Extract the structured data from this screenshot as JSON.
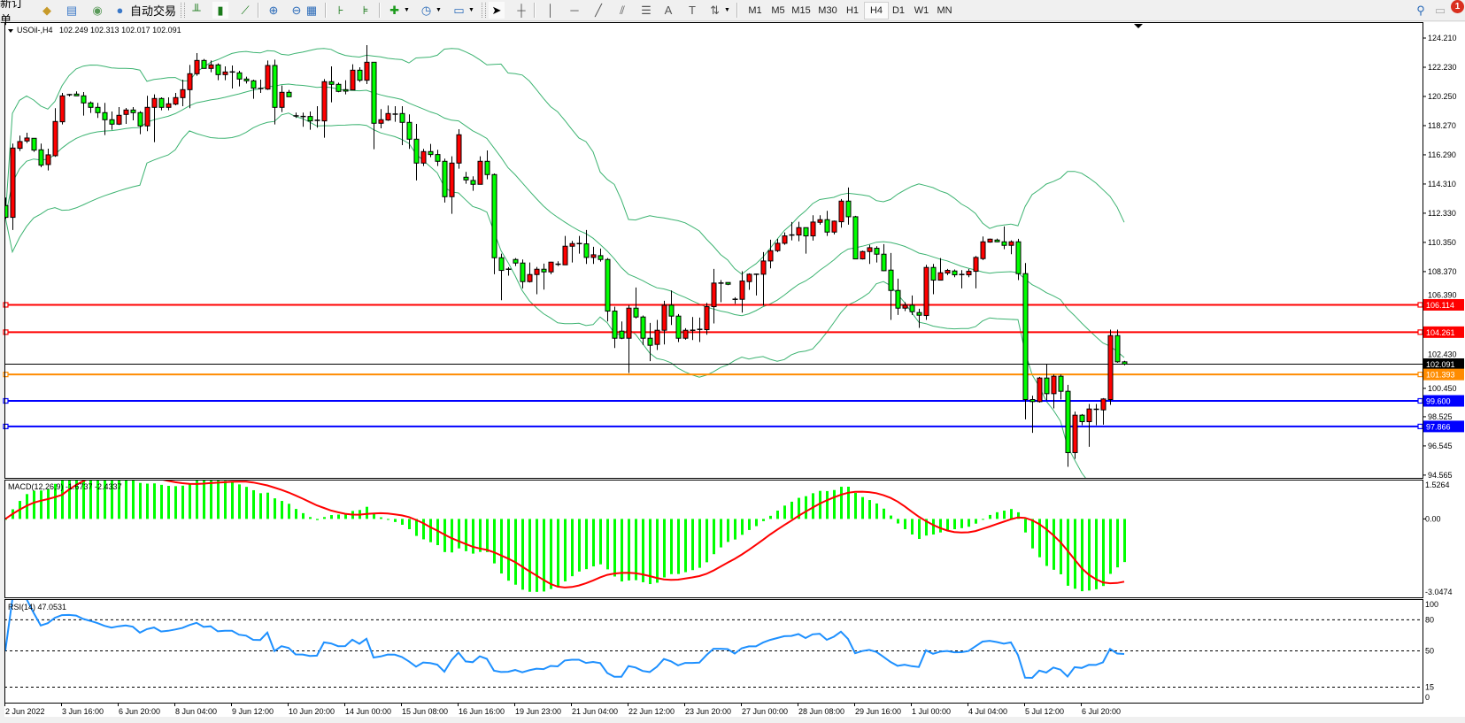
{
  "toolbar": {
    "new_order": "新订单",
    "auto_trading": "自动交易",
    "icons": [
      "book-icon",
      "terminal-icon",
      "signal-icon",
      "auto-trading-icon",
      "bar-chart-icon",
      "candlestick-icon",
      "line-chart-icon",
      "zoom-in-icon",
      "zoom-out-icon",
      "tile-windows-icon",
      "auto-scroll-icon",
      "chart-shift-icon",
      "new-chart-icon",
      "clock-icon",
      "template-icon",
      "cursor-icon",
      "crosshair-icon",
      "vertical-line-icon",
      "horizontal-line-icon",
      "trendline-icon",
      "equidistant-channel-icon",
      "fibonacci-icon",
      "text-icon",
      "text-label-icon",
      "arrows-icon",
      "search-icon",
      "chat-icon"
    ],
    "periods": [
      "M1",
      "M5",
      "M15",
      "M30",
      "H1",
      "H4",
      "D1",
      "W1",
      "MN"
    ],
    "active_period": "H4",
    "notification_count": "1"
  },
  "chart_header": {
    "symbol": "USOil-,H4",
    "ohlc": "102.249 102.313 102.017 102.091"
  },
  "chart_data": {
    "type": "candlestick",
    "colors": {
      "bull": "#ff0000",
      "bear": "#00ff00",
      "bands": "#3cb371",
      "macd_hist": "#00ff00",
      "macd_signal": "#ff0000",
      "rsi": "#1e90ff"
    },
    "ohlc": [
      [
        112.85,
        113.39,
        111.95,
        112.05
      ],
      [
        112.05,
        117.05,
        111.19,
        116.75
      ],
      [
        116.73,
        117.59,
        116.55,
        117.19
      ],
      [
        117.23,
        117.79,
        117.09,
        117.43
      ],
      [
        117.41,
        117.41,
        116.49,
        116.61
      ],
      [
        116.63,
        117.05,
        115.45,
        115.59
      ],
      [
        115.63,
        116.71,
        115.23,
        116.29
      ],
      [
        116.23,
        119.45,
        116.15,
        118.55
      ],
      [
        118.53,
        120.49,
        118.35,
        120.29
      ],
      [
        120.29,
        120.41,
        120.25,
        120.37
      ],
      [
        120.41,
        120.59,
        120.29,
        120.29
      ],
      [
        120.29,
        120.55,
        118.95,
        119.81
      ],
      [
        119.81,
        119.91,
        119.13,
        119.51
      ],
      [
        119.51,
        119.81,
        118.79,
        119.15
      ],
      [
        119.15,
        119.81,
        117.63,
        118.67
      ],
      [
        118.67,
        119.23,
        117.99,
        118.37
      ],
      [
        118.37,
        119.53,
        118.31,
        118.97
      ],
      [
        119.03,
        119.47,
        118.39,
        119.33
      ],
      [
        119.33,
        119.53,
        118.63,
        119.15
      ],
      [
        119.15,
        119.25,
        117.69,
        118.25
      ],
      [
        118.25,
        120.29,
        117.89,
        119.51
      ],
      [
        119.51,
        120.39,
        117.15,
        120.11
      ],
      [
        120.11,
        120.19,
        119.31,
        119.51
      ],
      [
        119.51,
        120.19,
        119.31,
        119.75
      ],
      [
        119.73,
        120.49,
        119.65,
        120.17
      ],
      [
        120.17,
        121.39,
        119.59,
        120.71
      ],
      [
        120.71,
        122.39,
        119.45,
        121.79
      ],
      [
        121.79,
        123.19,
        121.65,
        122.69
      ],
      [
        122.69,
        122.79,
        122.13,
        122.15
      ],
      [
        122.15,
        122.69,
        121.89,
        122.39
      ],
      [
        122.39,
        122.49,
        121.35,
        121.73
      ],
      [
        121.73,
        122.29,
        121.35,
        121.91
      ],
      [
        121.85,
        122.35,
        120.79,
        121.91
      ],
      [
        121.85,
        121.99,
        120.93,
        121.43
      ],
      [
        121.43,
        121.59,
        121.13,
        121.31
      ],
      [
        121.31,
        121.39,
        120.09,
        120.81
      ],
      [
        120.79,
        121.39,
        120.49,
        120.79
      ],
      [
        120.75,
        122.69,
        120.69,
        122.35
      ],
      [
        122.35,
        122.75,
        118.35,
        119.51
      ],
      [
        119.51,
        120.99,
        119.19,
        120.53
      ],
      [
        120.53,
        120.69,
        120.23,
        120.23
      ],
      [
        118.93,
        119.15,
        118.79,
        118.89
      ],
      [
        118.89,
        119.15,
        118.19,
        118.87
      ],
      [
        118.89,
        119.23,
        117.99,
        118.59
      ],
      [
        118.63,
        119.59,
        118.13,
        118.63
      ],
      [
        118.59,
        121.43,
        117.45,
        121.25
      ],
      [
        121.25,
        122.29,
        119.85,
        121.07
      ],
      [
        121.07,
        121.19,
        120.53,
        120.59
      ],
      [
        120.71,
        121.35,
        120.39,
        120.61
      ],
      [
        120.69,
        122.43,
        120.69,
        122.03
      ],
      [
        122.03,
        122.23,
        121.23,
        121.35
      ],
      [
        121.35,
        123.73,
        121.09,
        122.57
      ],
      [
        122.57,
        122.57,
        116.67,
        118.43
      ],
      [
        118.43,
        119.39,
        118.09,
        118.67
      ],
      [
        118.65,
        119.63,
        118.59,
        119.09
      ],
      [
        119.05,
        119.59,
        118.53,
        119.05
      ],
      [
        119.09,
        119.59,
        116.95,
        118.49
      ],
      [
        118.49,
        119.03,
        116.69,
        117.35
      ],
      [
        117.35,
        118.39,
        114.55,
        115.73
      ],
      [
        115.73,
        116.69,
        115.53,
        116.51
      ],
      [
        116.51,
        117.03,
        116.13,
        116.31
      ],
      [
        116.31,
        116.63,
        115.53,
        115.85
      ],
      [
        115.85,
        116.03,
        113.05,
        113.45
      ],
      [
        113.45,
        116.19,
        112.29,
        115.73
      ],
      [
        115.73,
        118.03,
        115.35,
        117.65
      ],
      [
        114.77,
        115.13,
        114.33,
        114.59
      ],
      [
        114.55,
        114.83,
        113.85,
        114.29
      ],
      [
        114.29,
        116.19,
        114.29,
        115.85
      ],
      [
        115.85,
        116.59,
        114.63,
        114.95
      ],
      [
        114.95,
        115.03,
        108.19,
        109.31
      ],
      [
        109.31,
        109.59,
        106.43,
        108.45
      ],
      [
        108.53,
        108.67,
        108.09,
        108.51
      ],
      [
        109.19,
        109.29,
        108.75,
        108.95
      ],
      [
        108.95,
        109.19,
        107.23,
        107.69
      ],
      [
        107.69,
        108.99,
        107.63,
        108.17
      ],
      [
        108.17,
        108.69,
        106.83,
        108.53
      ],
      [
        108.53,
        108.91,
        107.15,
        108.35
      ],
      [
        108.35,
        109.03,
        108.19,
        109.01
      ],
      [
        108.87,
        109.07,
        108.75,
        108.85
      ],
      [
        108.83,
        110.79,
        108.83,
        110.09
      ],
      [
        110.09,
        110.45,
        108.99,
        110.27
      ],
      [
        110.27,
        110.79,
        109.59,
        110.27
      ],
      [
        110.25,
        111.19,
        108.89,
        109.33
      ],
      [
        109.33,
        110.05,
        108.89,
        109.51
      ],
      [
        109.45,
        109.93,
        109.05,
        109.19
      ],
      [
        109.19,
        109.29,
        104.99,
        105.69
      ],
      [
        105.69,
        105.99,
        103.19,
        103.85
      ],
      [
        104.33,
        104.99,
        103.79,
        103.85
      ],
      [
        103.85,
        106.09,
        101.49,
        105.89
      ],
      [
        105.89,
        107.29,
        105.19,
        105.29
      ],
      [
        105.29,
        105.39,
        103.39,
        103.85
      ],
      [
        103.85,
        104.89,
        102.29,
        103.37
      ],
      [
        103.43,
        105.09,
        103.05,
        104.39
      ],
      [
        104.39,
        106.39,
        103.43,
        106.09
      ],
      [
        106.09,
        107.09,
        104.75,
        105.35
      ],
      [
        105.35,
        105.49,
        103.59,
        103.85
      ],
      [
        103.85,
        104.53,
        103.75,
        104.39
      ],
      [
        104.39,
        105.29,
        103.73,
        104.39
      ],
      [
        104.39,
        105.25,
        103.59,
        104.45
      ],
      [
        104.43,
        106.25,
        104.09,
        105.99
      ],
      [
        105.99,
        108.55,
        104.85,
        107.59
      ],
      [
        107.59,
        107.79,
        106.29,
        107.59
      ],
      [
        107.63,
        107.63,
        107.45,
        107.51
      ],
      [
        106.49,
        106.63,
        106.19,
        106.49
      ],
      [
        106.49,
        108.39,
        105.59,
        107.73
      ],
      [
        107.69,
        108.25,
        107.13,
        108.19
      ],
      [
        108.19,
        108.23,
        106.75,
        108.19
      ],
      [
        108.19,
        109.69,
        106.05,
        109.09
      ],
      [
        109.09,
        110.53,
        108.59,
        109.79
      ],
      [
        109.79,
        110.59,
        109.69,
        110.29
      ],
      [
        110.29,
        111.03,
        110.19,
        110.79
      ],
      [
        110.85,
        111.73,
        110.49,
        110.85
      ],
      [
        110.85,
        111.75,
        110.43,
        111.35
      ],
      [
        111.35,
        111.35,
        109.59,
        110.79
      ],
      [
        110.79,
        112.19,
        110.47,
        111.73
      ],
      [
        111.71,
        112.19,
        111.55,
        111.89
      ],
      [
        111.89,
        112.49,
        110.79,
        111.05
      ],
      [
        111.05,
        111.83,
        110.89,
        111.79
      ],
      [
        111.75,
        113.29,
        111.35,
        113.15
      ],
      [
        113.15,
        114.07,
        111.55,
        112.09
      ],
      [
        112.09,
        112.15,
        109.23,
        109.23
      ],
      [
        109.23,
        109.79,
        109.19,
        109.73
      ],
      [
        109.73,
        110.19,
        108.89,
        109.99
      ],
      [
        109.95,
        110.09,
        108.99,
        109.55
      ],
      [
        109.55,
        110.23,
        108.39,
        108.43
      ],
      [
        108.47,
        109.63,
        105.09,
        107.09
      ],
      [
        107.09,
        107.89,
        105.43,
        105.89
      ],
      [
        105.89,
        106.29,
        105.69,
        106.09
      ],
      [
        106.09,
        106.75,
        105.43,
        105.65
      ],
      [
        105.59,
        105.85,
        104.55,
        105.41
      ],
      [
        105.39,
        108.83,
        105.09,
        108.65
      ],
      [
        108.65,
        108.89,
        106.83,
        107.79
      ],
      [
        107.79,
        109.29,
        107.79,
        108.29
      ],
      [
        108.27,
        108.55,
        108.13,
        108.45
      ],
      [
        108.41,
        108.51,
        107.99,
        108.15
      ],
      [
        108.17,
        108.47,
        107.23,
        108.17
      ],
      [
        108.15,
        108.55,
        107.99,
        108.39
      ],
      [
        108.39,
        109.43,
        107.23,
        109.33
      ],
      [
        109.25,
        110.75,
        109.15,
        110.39
      ],
      [
        110.37,
        110.61,
        110.33,
        110.57
      ],
      [
        110.51,
        110.61,
        110.37,
        110.39
      ],
      [
        110.39,
        111.43,
        109.89,
        110.15
      ],
      [
        110.15,
        110.49,
        109.55,
        110.39
      ],
      [
        110.39,
        110.59,
        107.79,
        108.23
      ],
      [
        108.23,
        108.95,
        98.35,
        99.69
      ],
      [
        99.69,
        99.95,
        97.43,
        99.55
      ],
      [
        99.55,
        101.23,
        99.49,
        101.15
      ],
      [
        101.15,
        102.09,
        99.63,
        100.09
      ],
      [
        100.09,
        101.39,
        99.09,
        101.27
      ],
      [
        101.27,
        101.39,
        99.69,
        100.25
      ],
      [
        100.25,
        100.69,
        95.13,
        96.09
      ],
      [
        96.09,
        98.87,
        95.67,
        98.63
      ],
      [
        98.63,
        98.71,
        97.95,
        98.19
      ],
      [
        98.19,
        99.39,
        96.49,
        99.05
      ],
      [
        99.03,
        99.39,
        97.95,
        99.03
      ],
      [
        98.99,
        99.79,
        97.99,
        99.73
      ],
      [
        99.69,
        104.43,
        99.33,
        104.03
      ],
      [
        104.03,
        104.43,
        102.19,
        102.25
      ],
      [
        102.249,
        102.313,
        102.017,
        102.091
      ]
    ],
    "price_ticks": [
      "124.210",
      "122.230",
      "120.250",
      "118.270",
      "116.290",
      "114.310",
      "112.330",
      "110.350",
      "108.370",
      "106.390",
      "102.430",
      "100.450",
      "98.525",
      "96.545",
      "94.565"
    ],
    "price_range": [
      94.38,
      125.29
    ],
    "time_labels": [
      "2 Jun 2022",
      "3 Jun 16:00",
      "6 Jun 20:00",
      "8 Jun 04:00",
      "9 Jun 12:00",
      "10 Jun 20:00",
      "14 Jun 00:00",
      "15 Jun 08:00",
      "16 Jun 16:00",
      "19 Jun 23:00",
      "21 Jun 04:00",
      "22 Jun 12:00",
      "23 Jun 20:00",
      "27 Jun 00:00",
      "28 Jun 08:00",
      "29 Jun 16:00",
      "1 Jul 00:00",
      "4 Jul 04:00",
      "5 Jul 12:00",
      "6 Jul 20:00"
    ],
    "levels": [
      {
        "label": "106.114",
        "value": 106.114,
        "color": "#ff0000"
      },
      {
        "label": "104.261",
        "value": 104.261,
        "color": "#ff0000"
      },
      {
        "label": "102.091",
        "value": 102.091,
        "color": "#000000"
      },
      {
        "label": "101.393",
        "value": 101.393,
        "color": "#ff8c00"
      },
      {
        "label": "99.600",
        "value": 99.6,
        "color": "#0000ff"
      },
      {
        "label": "97.866",
        "value": 97.866,
        "color": "#0000ff"
      }
    ],
    "bollinger": {
      "period": 20,
      "deviation": 2
    },
    "macd": {
      "label": "MACD(12,26,9) -1.6737 -2.4337",
      "fast": 12,
      "slow": 26,
      "signal": 9,
      "ticks": [
        "1.5264",
        "0.00",
        "-3.0474"
      ],
      "range": [
        -3.0474,
        1.5264
      ]
    },
    "rsi": {
      "label": "RSI(14) 47.0531",
      "period": 14,
      "ticks": [
        "100",
        "80",
        "50",
        "15",
        "0"
      ],
      "levels": [
        80,
        50,
        15
      ]
    }
  }
}
